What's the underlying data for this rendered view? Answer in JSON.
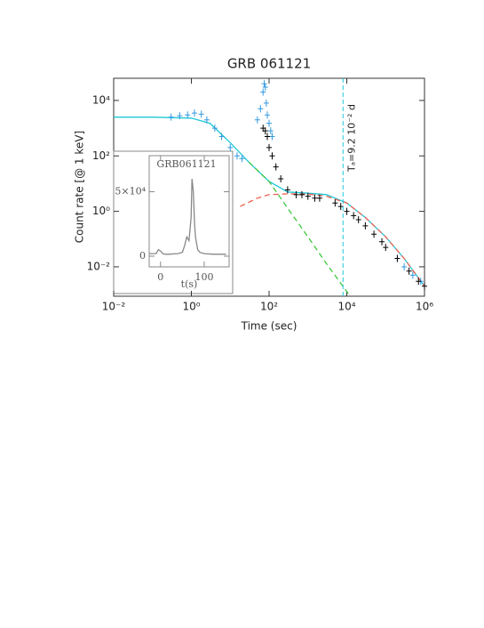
{
  "chart_data": [
    {
      "type": "scatter",
      "title": "GRB 061121",
      "x_label": "Time (sec)",
      "y_label": "Count rate [@ 1 keV]",
      "log_x": true,
      "log_y": true,
      "xlim": [
        0.01,
        1000000
      ],
      "ylim": [
        0.00087,
        63000
      ],
      "xticks": [
        {
          "value": 0.01,
          "label": "10⁻²"
        },
        {
          "value": 1,
          "label": "10⁰"
        },
        {
          "value": 100,
          "label": "10²"
        },
        {
          "value": 10000,
          "label": "10⁴"
        },
        {
          "value": 1000000,
          "label": "10⁶"
        }
      ],
      "yticks": [
        {
          "value": 0.01,
          "label": "10⁻²"
        },
        {
          "value": 1,
          "label": "10⁰"
        },
        {
          "value": 100,
          "label": "10²"
        },
        {
          "value": 10000,
          "label": "10⁴"
        }
      ],
      "series": [
        {
          "kind": "line",
          "dash": false,
          "color": "#1ec8d8",
          "x": [
            0.01,
            0.1,
            1,
            3,
            10,
            30,
            100,
            300,
            1000,
            3000,
            10000,
            30000,
            100000,
            300000,
            1000000
          ],
          "values": [
            2500,
            2500,
            2300,
            1500,
            300,
            60,
            12,
            5,
            4.5,
            4,
            2,
            0.6,
            0.12,
            0.02,
            0.002
          ]
        },
        {
          "kind": "line",
          "dash": true,
          "color": "#3cc83c",
          "x": [
            30,
            100,
            300,
            1000,
            3000,
            12000
          ],
          "values": [
            60,
            12,
            1.3,
            0.12,
            0.013,
            0.0009
          ]
        },
        {
          "kind": "line",
          "dash": true,
          "color": "#f06050",
          "x": [
            18,
            50,
            100,
            300,
            1000,
            3000,
            10000,
            30000,
            100000,
            300000,
            1000000
          ],
          "values": [
            1.5,
            3,
            4,
            4.3,
            4.2,
            3.5,
            2,
            0.6,
            0.12,
            0.02,
            0.002
          ]
        },
        {
          "kind": "points",
          "color": "#3399e0",
          "x": [
            0.3,
            0.5,
            0.8,
            1.2,
            1.8,
            2.5,
            4,
            6,
            10,
            15,
            20,
            50,
            60,
            70,
            75,
            80,
            85,
            90,
            100,
            110,
            120,
            200000,
            300000,
            500000,
            800000
          ],
          "values": [
            2500,
            2800,
            3000,
            3500,
            3200,
            2000,
            1000,
            500,
            200,
            100,
            80,
            2000,
            5000,
            20000,
            40000,
            30000,
            8000,
            3000,
            1500,
            800,
            500,
            0.02,
            0.01,
            0.005,
            0.003
          ]
        },
        {
          "kind": "points",
          "color": "#000000",
          "x": [
            70,
            80,
            90,
            100,
            120,
            150,
            200,
            300,
            500,
            700,
            1000,
            1500,
            2000,
            5000,
            7000,
            10000,
            15000,
            20000,
            30000,
            50000,
            80000,
            100000,
            200000,
            400000,
            700000,
            1000000
          ],
          "values": [
            1000,
            800,
            500,
            200,
            100,
            40,
            15,
            6,
            4,
            4,
            3.5,
            3,
            3,
            2,
            1.5,
            1,
            0.7,
            0.5,
            0.3,
            0.15,
            0.08,
            0.05,
            0.02,
            0.007,
            0.003,
            0.002
          ]
        }
      ],
      "annotation": {
        "x": 8000,
        "label": "Tₐ=9.2 10⁻² d",
        "color": "#1ec8d8"
      }
    },
    {
      "type": "line",
      "title": "GRB061121",
      "x_label": "t(s)",
      "xlim": [
        -26,
        157
      ],
      "ylim": [
        -8300,
        78000
      ],
      "xticks": [
        0,
        100
      ],
      "yticks": [
        0,
        {
          "value": 50000,
          "label": "5×10⁴"
        }
      ],
      "color": "#888888",
      "x": [
        -25,
        -10,
        -5,
        0,
        5,
        10,
        20,
        30,
        40,
        50,
        55,
        60,
        65,
        70,
        72,
        75,
        78,
        80,
        85,
        90,
        100,
        120,
        150
      ],
      "values": [
        2000,
        2000,
        5000,
        4000,
        2000,
        1500,
        1500,
        1800,
        2000,
        3000,
        8000,
        15000,
        12000,
        30000,
        60000,
        50000,
        25000,
        15000,
        5000,
        3000,
        2000,
        1500,
        1500
      ]
    }
  ]
}
